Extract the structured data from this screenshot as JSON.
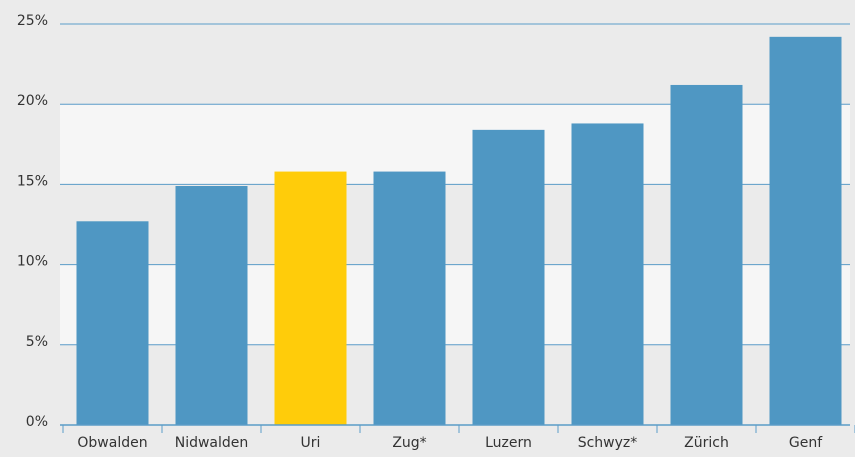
{
  "chart_data": {
    "type": "bar",
    "categories": [
      "Obwalden",
      "Nidwalden",
      "Uri",
      "Zug*",
      "Luzern",
      "Schwyz*",
      "Zürich",
      "Genf"
    ],
    "values": [
      12.7,
      14.9,
      15.8,
      15.8,
      18.4,
      18.8,
      21.2,
      24.2
    ],
    "colors": [
      "#4f97c3",
      "#4f97c3",
      "#ffcc0a",
      "#4f97c3",
      "#4f97c3",
      "#4f97c3",
      "#4f97c3",
      "#4f97c3"
    ],
    "ylim": [
      0,
      25
    ],
    "yticks": [
      {
        "value": 0,
        "label": "0%"
      },
      {
        "value": 5,
        "label": "5%"
      },
      {
        "value": 10,
        "label": "10%"
      },
      {
        "value": 15,
        "label": "15%"
      },
      {
        "value": 20,
        "label": "20%"
      },
      {
        "value": 25,
        "label": "25%"
      }
    ],
    "grid": true
  }
}
